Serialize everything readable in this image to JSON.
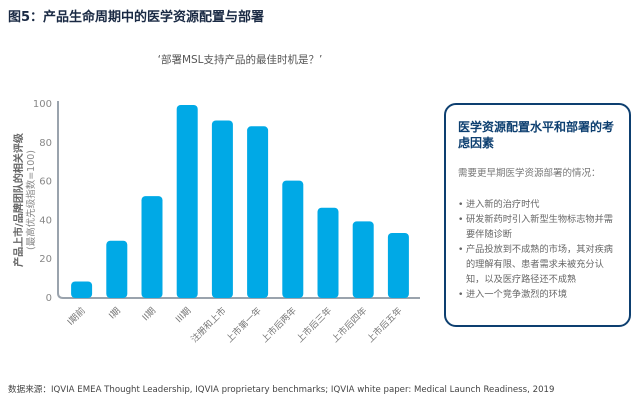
{
  "title": "图5：产品生命周期中的医学资源配置与部署",
  "source": "数据来源：IQVIA EMEA Thought Leadership, IQVIA proprietary benchmarks; IQVIA white paper: Medical Launch Readiness, 2019",
  "chart_data": {
    "type": "bar",
    "title": "‘部署MSL支持产品的最佳时机是？’",
    "ylabel": "产品上市/品牌团队的相关评级",
    "ylabel2": "(最高优先级指数=100)",
    "ylim": [
      0,
      100
    ],
    "yticks": [
      "0",
      "20",
      "40",
      "60",
      "80",
      "100"
    ],
    "categories": [
      "I期前",
      "I期",
      "II期",
      "III期",
      "注册和上市",
      "上市第一年",
      "上市后两年",
      "上市后三年",
      "上市后四年",
      "上市后五年"
    ],
    "values": [
      8,
      29,
      52,
      99,
      91,
      88,
      60,
      46,
      39,
      33
    ],
    "color": "#00a9e6",
    "grid": false
  },
  "box": {
    "heading": "医学资源配置水平和部署的考虑因素",
    "intro": "需要更早期医学资源部署的情况：",
    "items": [
      "进入新的治疗时代",
      "研发新药时引入新型生物标志物并需要伴随诊断",
      "产品投放到不成熟的市场，其对疾病的理解有限、患者需求未被充分认知，以及医疗路径还不成熟",
      "进入一个竞争激烈的环境"
    ]
  }
}
